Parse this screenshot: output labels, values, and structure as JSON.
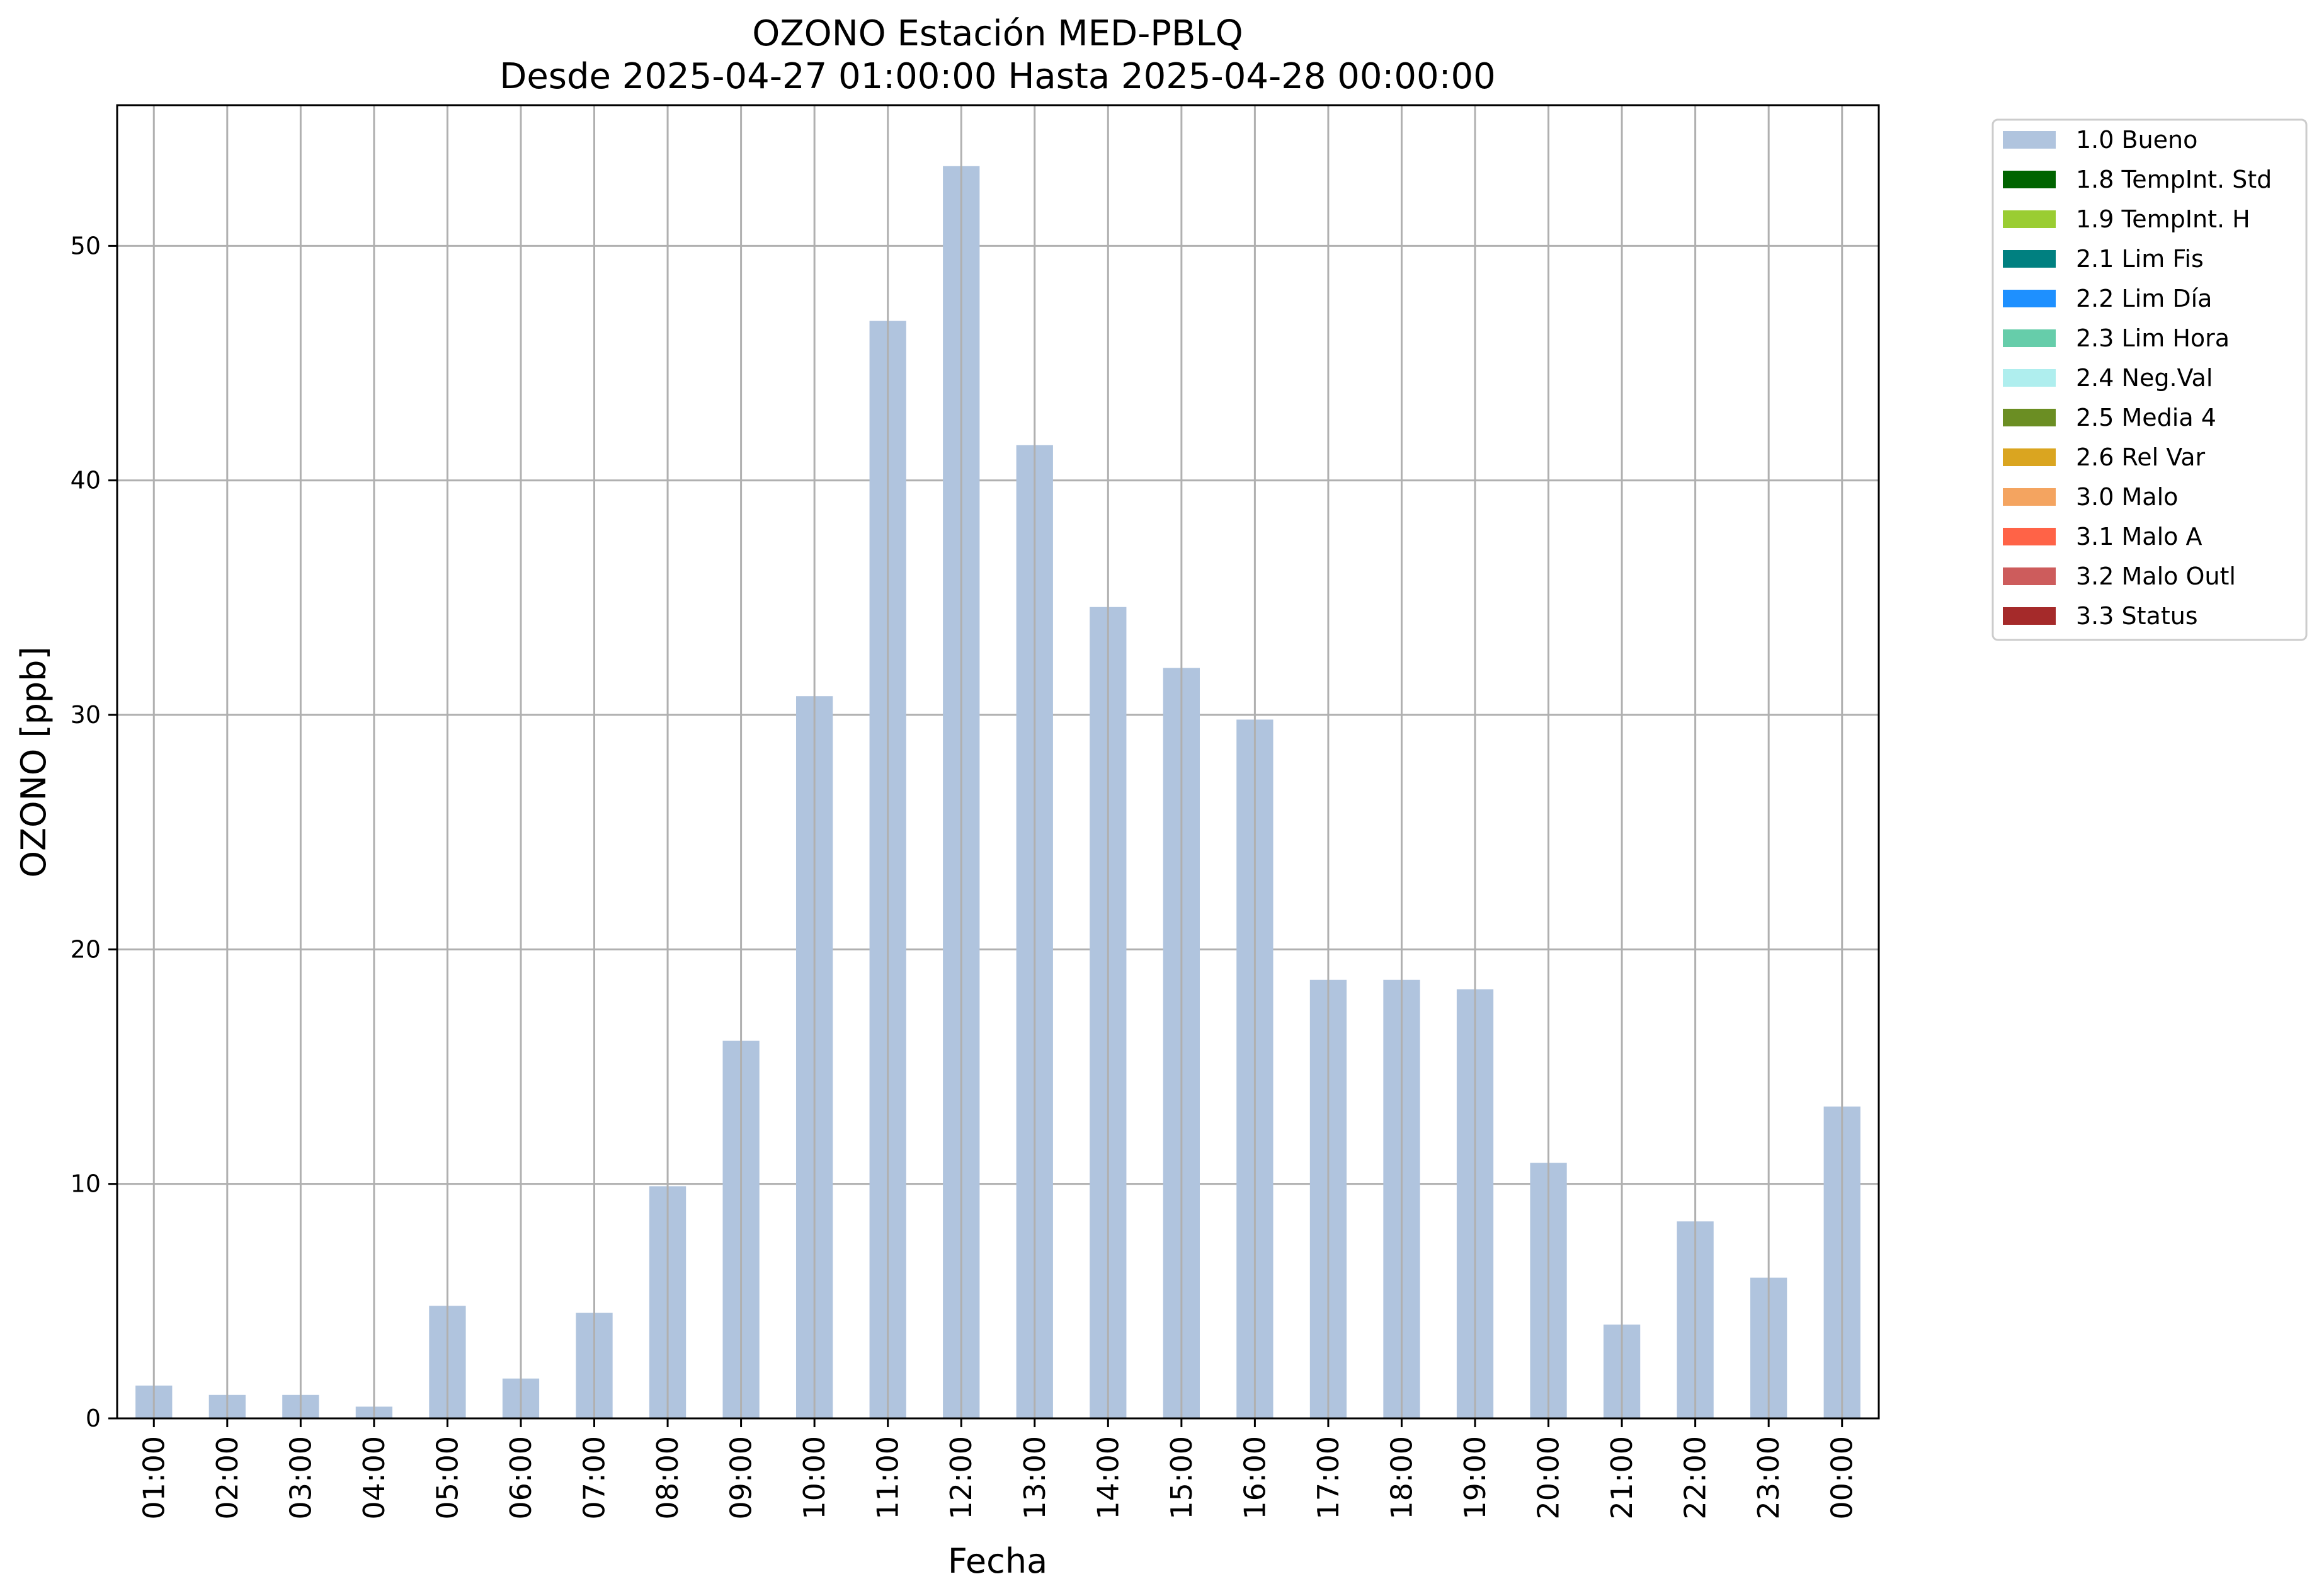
{
  "chart_data": {
    "type": "bar",
    "title": "OZONO Estación MED-PBLQ",
    "subtitle": "Desde 2025-04-27 01:00:00 Hasta 2025-04-28 00:00:00",
    "xlabel": "Fecha",
    "ylabel": "OZONO [ppb]",
    "ylim": [
      0,
      56
    ],
    "yticks": [
      0,
      10,
      20,
      30,
      40,
      50
    ],
    "grid": true,
    "legend_position": "outside-top-right",
    "categories": [
      "01:00",
      "02:00",
      "03:00",
      "04:00",
      "05:00",
      "06:00",
      "07:00",
      "08:00",
      "09:00",
      "10:00",
      "11:00",
      "12:00",
      "13:00",
      "14:00",
      "15:00",
      "16:00",
      "17:00",
      "18:00",
      "19:00",
      "20:00",
      "21:00",
      "22:00",
      "23:00",
      "00:00"
    ],
    "series": [
      {
        "name": "1.0 Bueno",
        "color": "#b0c4de",
        "values": [
          1.4,
          1.0,
          1.0,
          0.5,
          4.8,
          1.7,
          4.5,
          9.9,
          16.1,
          30.8,
          46.8,
          53.4,
          41.5,
          34.6,
          32.0,
          29.8,
          18.7,
          18.7,
          18.3,
          10.9,
          4.0,
          8.4,
          6.0,
          13.3
        ]
      }
    ],
    "legend": [
      {
        "label": "1.0 Bueno",
        "color": "#b0c4de"
      },
      {
        "label": "1.8 TempInt. Std",
        "color": "#006400"
      },
      {
        "label": "1.9 TempInt. H",
        "color": "#9acd32"
      },
      {
        "label": "2.1 Lim Fis",
        "color": "#008080"
      },
      {
        "label": "2.2 Lim Día",
        "color": "#1e90ff"
      },
      {
        "label": "2.3 Lim Hora",
        "color": "#66cdaa"
      },
      {
        "label": "2.4 Neg.Val",
        "color": "#afeeee"
      },
      {
        "label": "2.5 Media 4",
        "color": "#6b8e23"
      },
      {
        "label": "2.6 Rel Var",
        "color": "#daa520"
      },
      {
        "label": "3.0 Malo",
        "color": "#f4a460"
      },
      {
        "label": "3.1 Malo A",
        "color": "#ff6347"
      },
      {
        "label": "3.2 Malo Outl",
        "color": "#cd5c5c"
      },
      {
        "label": "3.3 Status",
        "color": "#a52a2a"
      }
    ]
  }
}
